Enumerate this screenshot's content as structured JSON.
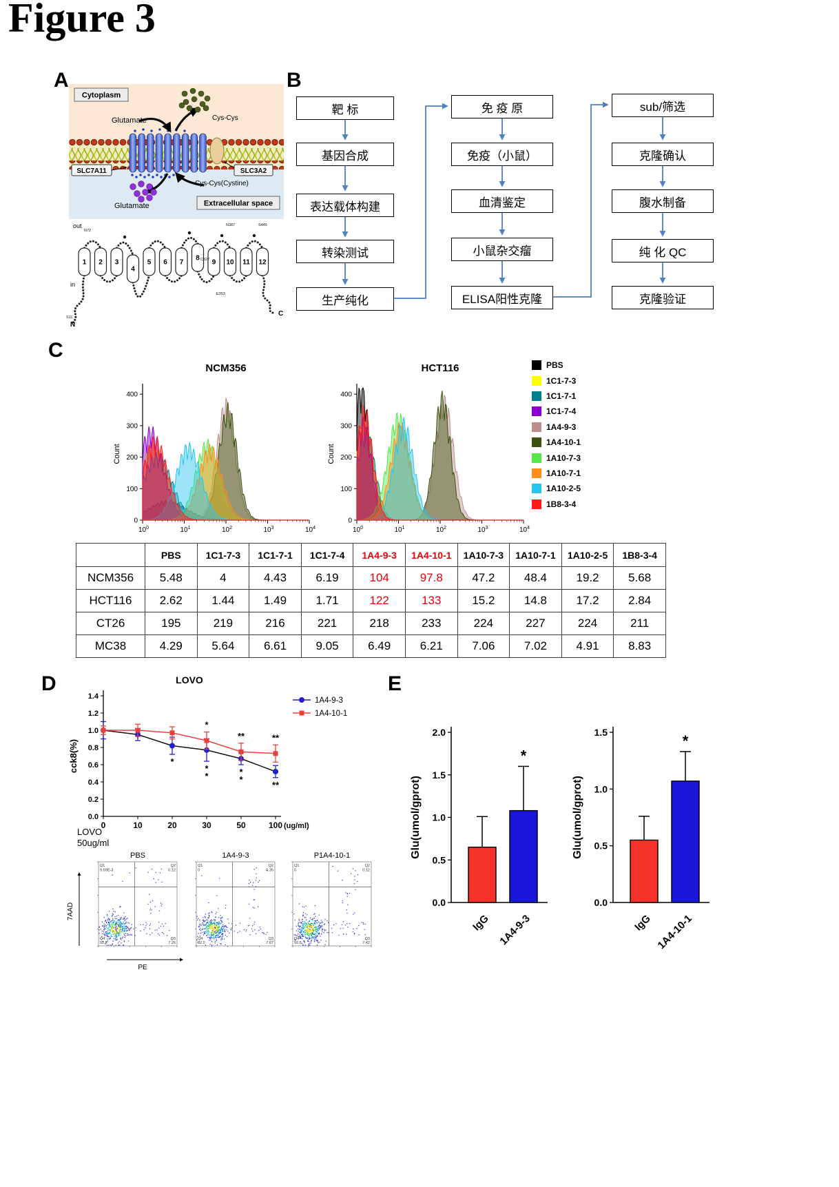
{
  "figure_title": "Figure 3",
  "panelA": {
    "label": "A",
    "cytoplasm_label": "Cytoplasm",
    "extracellular_label": "Extracellular space",
    "glutamate_top": "Glutamate",
    "glutamate_bottom": "Glutamate",
    "cys_cys_label": "Cys-Cys",
    "cystine_label": "Cys-Cys(Cystine)",
    "transporter_left": "SLC7A11",
    "transporter_right": "SLC3A2",
    "topology": {
      "out_label": "out",
      "in_label": "in",
      "n_terminus": "N",
      "c_terminus": "C",
      "segments": [
        "1",
        "2",
        "3",
        "4",
        "5",
        "6",
        "7",
        "8",
        "9",
        "10",
        "11",
        "12"
      ],
      "residue_labels": [
        "N72",
        "C327",
        "N387",
        "S445",
        "E353",
        "S11"
      ]
    }
  },
  "panelB": {
    "label": "B",
    "arrow_color": "#4f81bd",
    "columns": [
      {
        "steps": [
          "靶 标",
          "基因合成",
          "表达载体构建",
          "转染测试",
          "生产纯化"
        ]
      },
      {
        "steps": [
          "免 疫 原",
          "免疫（小鼠）",
          "血清鉴定",
          "小鼠杂交瘤",
          "ELISA阳性克隆"
        ]
      },
      {
        "steps": [
          "sub/筛选",
          "克隆确认",
          "腹水制备",
          "纯 化 QC",
          "克隆验证"
        ]
      }
    ]
  },
  "panelC": {
    "label": "C",
    "legend": [
      {
        "label": "PBS",
        "color": "#000000"
      },
      {
        "label": "1C1-7-3",
        "color": "#ffff00"
      },
      {
        "label": "1C1-7-1",
        "color": "#00808a"
      },
      {
        "label": "1C1-7-4",
        "color": "#8b00d0"
      },
      {
        "label": "1A4-9-3",
        "color": "#bc8f8f"
      },
      {
        "label": "1A4-10-1",
        "color": "#39520e"
      },
      {
        "label": "1A10-7-3",
        "color": "#57e64b"
      },
      {
        "label": "1A10-7-1",
        "color": "#ff8c1a"
      },
      {
        "label": "1A10-2-5",
        "color": "#26c4f2"
      },
      {
        "label": "1B8-3-4",
        "color": "#ff1a1a"
      }
    ],
    "table": {
      "highlight_color": "#e8000b",
      "headers": [
        "",
        "PBS",
        "1C1-7-3",
        "1C1-7-1",
        "1C1-7-4",
        "1A4-9-3",
        "1A4-10-1",
        "1A10-7-3",
        "1A10-7-1",
        "1A10-2-5",
        "1B8-3-4"
      ],
      "red_header_indexes": [
        5,
        6
      ],
      "rows": [
        {
          "name": "NCM356",
          "values": [
            "5.48",
            "4",
            "4.43",
            "6.19",
            "104",
            "97.8",
            "47.2",
            "48.4",
            "19.2",
            "5.68"
          ],
          "red_value_indexes": [
            4,
            5
          ]
        },
        {
          "name": "HCT116",
          "values": [
            "2.62",
            "1.44",
            "1.49",
            "1.71",
            "122",
            "133",
            "15.2",
            "14.8",
            "17.2",
            "2.84"
          ],
          "red_value_indexes": [
            4,
            5
          ]
        },
        {
          "name": "CT26",
          "values": [
            "195",
            "219",
            "216",
            "221",
            "218",
            "233",
            "224",
            "227",
            "224",
            "211"
          ],
          "red_value_indexes": []
        },
        {
          "name": "MC38",
          "values": [
            "4.29",
            "5.64",
            "6.61",
            "9.05",
            "6.49",
            "6.21",
            "7.06",
            "7.02",
            "4.91",
            "8.83"
          ],
          "red_value_indexes": []
        }
      ]
    }
  },
  "panelD": {
    "label": "D",
    "flow_condition_line1": "LOVO",
    "flow_condition_line2": "50ug/ml",
    "flow_y_axis": "7AAD",
    "flow_x_axis": "PE",
    "dot_plots": [
      {
        "title": "PBS",
        "q1_label": "Q1",
        "q1": "9.69E-3",
        "q2_label": "Q2",
        "q2": "0.12",
        "q4_label": "Q4",
        "q4": "92.6",
        "q3_label": "Q3",
        "q3": "7.25"
      },
      {
        "title": "1A4-9-3",
        "q1_label": "Q1",
        "q1": "0",
        "q2_label": "Q2",
        "q2": "0.35",
        "q4_label": "Q4",
        "q4": "92.0",
        "q3_label": "Q3",
        "q3": "7.67"
      },
      {
        "title": "P1A4-10-1",
        "q1_label": "Q1",
        "q1": "0",
        "q2_label": "Q2",
        "q2": "0.12",
        "q4_label": "Q4",
        "q4": "92.5",
        "q3_label": "Q3",
        "q3": "7.42"
      }
    ]
  },
  "panelE": {
    "label": "E"
  },
  "chart_data": [
    {
      "id": "hist-ncm356",
      "type": "area",
      "subtype": "flow-histogram",
      "title": "NCM356",
      "ylabel": "Count",
      "yticks": [
        0,
        100,
        200,
        300,
        400
      ],
      "ymax": 420,
      "xticks": [
        "10^0",
        "10^1",
        "10^2",
        "10^3",
        "10^4"
      ],
      "x_decades": 4,
      "series": [
        {
          "name": "PBS",
          "color": "#000000",
          "center": 0.6,
          "peak": 60,
          "sigma": 0.45
        },
        {
          "name": "1C1-7-3",
          "color": "#ffff00",
          "center": 0.25,
          "peak": 235,
          "sigma": 0.32
        },
        {
          "name": "1C1-7-1",
          "color": "#00808a",
          "center": 0.35,
          "peak": 205,
          "sigma": 0.35
        },
        {
          "name": "1C1-7-4",
          "color": "#8b00d0",
          "center": 0.2,
          "peak": 285,
          "sigma": 0.3
        },
        {
          "name": "1A4-9-3",
          "color": "#bc8f8f",
          "center": 2.0,
          "peak": 370,
          "sigma": 0.22
        },
        {
          "name": "1A4-10-1",
          "color": "#39520e",
          "center": 2.05,
          "peak": 355,
          "sigma": 0.22
        },
        {
          "name": "1A10-7-3",
          "color": "#57e64b",
          "center": 1.55,
          "peak": 245,
          "sigma": 0.28
        },
        {
          "name": "1A10-7-1",
          "color": "#ff8c1a",
          "center": 1.62,
          "peak": 230,
          "sigma": 0.28
        },
        {
          "name": "1A10-2-5",
          "color": "#26c4f2",
          "center": 1.1,
          "peak": 235,
          "sigma": 0.3
        },
        {
          "name": "1B8-3-4",
          "color": "#ff1a1a",
          "center": 0.3,
          "peak": 255,
          "sigma": 0.3
        }
      ]
    },
    {
      "id": "hist-hct116",
      "type": "area",
      "subtype": "flow-histogram",
      "title": "HCT116",
      "ylabel": "Count",
      "yticks": [
        0,
        100,
        200,
        300,
        400
      ],
      "ymax": 420,
      "xticks": [
        "10^0",
        "10^1",
        "10^2",
        "10^3",
        "10^4"
      ],
      "x_decades": 4,
      "series": [
        {
          "name": "PBS",
          "color": "#000000",
          "center": 0.12,
          "peak": 430,
          "sigma": 0.18
        },
        {
          "name": "1C1-7-3",
          "color": "#ffff00",
          "center": 0.18,
          "peak": 300,
          "sigma": 0.22
        },
        {
          "name": "1C1-7-1",
          "color": "#00808a",
          "center": 0.22,
          "peak": 280,
          "sigma": 0.22
        },
        {
          "name": "1C1-7-4",
          "color": "#8b00d0",
          "center": 0.16,
          "peak": 310,
          "sigma": 0.2
        },
        {
          "name": "1A4-9-3",
          "color": "#bc8f8f",
          "center": 2.1,
          "peak": 380,
          "sigma": 0.22
        },
        {
          "name": "1A4-10-1",
          "color": "#39520e",
          "center": 2.05,
          "peak": 390,
          "sigma": 0.2
        },
        {
          "name": "1A10-7-3",
          "color": "#57e64b",
          "center": 1.0,
          "peak": 330,
          "sigma": 0.26
        },
        {
          "name": "1A10-7-1",
          "color": "#ff8c1a",
          "center": 1.05,
          "peak": 300,
          "sigma": 0.24
        },
        {
          "name": "1A10-2-5",
          "color": "#26c4f2",
          "center": 1.12,
          "peak": 310,
          "sigma": 0.24
        },
        {
          "name": "1B8-3-4",
          "color": "#ff1a1a",
          "center": 0.18,
          "peak": 350,
          "sigma": 0.2
        }
      ]
    },
    {
      "id": "line-lovo",
      "type": "line",
      "title": "LOVO",
      "ylabel": "cck8(%)",
      "categories": [
        "0",
        "10",
        "20",
        "30",
        "50",
        "100"
      ],
      "x_unit": "(ug/ml)",
      "ylim": [
        0,
        1.4
      ],
      "ytick_step": 0.2,
      "series": [
        {
          "name": "1A4-9-3",
          "marker": "circle",
          "color": "#2222cc",
          "line_color": "#111111",
          "values": [
            1.0,
            0.95,
            0.82,
            0.77,
            0.67,
            0.52
          ],
          "errors": [
            0.1,
            0.07,
            0.1,
            0.13,
            0.07,
            0.07
          ]
        },
        {
          "name": "1A4-10-1",
          "marker": "square",
          "color": "#e8413c",
          "line_color": "#e8413c",
          "values": [
            1.0,
            1.0,
            0.97,
            0.88,
            0.75,
            0.73
          ],
          "errors": [
            0.05,
            0.07,
            0.07,
            0.1,
            0.1,
            0.1
          ]
        }
      ],
      "sig_above": [
        "",
        "",
        "",
        "*",
        "**",
        "**"
      ],
      "sig_below": [
        "",
        "",
        "*",
        "*|*",
        "*|*",
        "**"
      ],
      "legend_position": "right"
    },
    {
      "id": "bar-glu-1a4-9-3",
      "type": "bar",
      "ylabel": "Glu(umol/gprot)",
      "ylim": [
        0,
        2.0
      ],
      "yticks": [
        0,
        0.5,
        1.0,
        1.5,
        2.0
      ],
      "categories": [
        "IgG",
        "1A4-9-3"
      ],
      "values": [
        0.65,
        1.08
      ],
      "errors": [
        0.36,
        0.52
      ],
      "bar_colors": [
        "#f5332b",
        "#1a16d9"
      ],
      "sig": [
        "",
        "*"
      ]
    },
    {
      "id": "bar-glu-1a4-10-1",
      "type": "bar",
      "ylabel": "Glu(umol/gprot)",
      "ylim": [
        0,
        1.5
      ],
      "yticks": [
        0,
        0.5,
        1.0,
        1.5
      ],
      "categories": [
        "IgG",
        "1A4-10-1"
      ],
      "values": [
        0.55,
        1.07
      ],
      "errors": [
        0.21,
        0.26
      ],
      "bar_colors": [
        "#f5332b",
        "#1a16d9"
      ],
      "sig": [
        "",
        "*"
      ]
    }
  ]
}
